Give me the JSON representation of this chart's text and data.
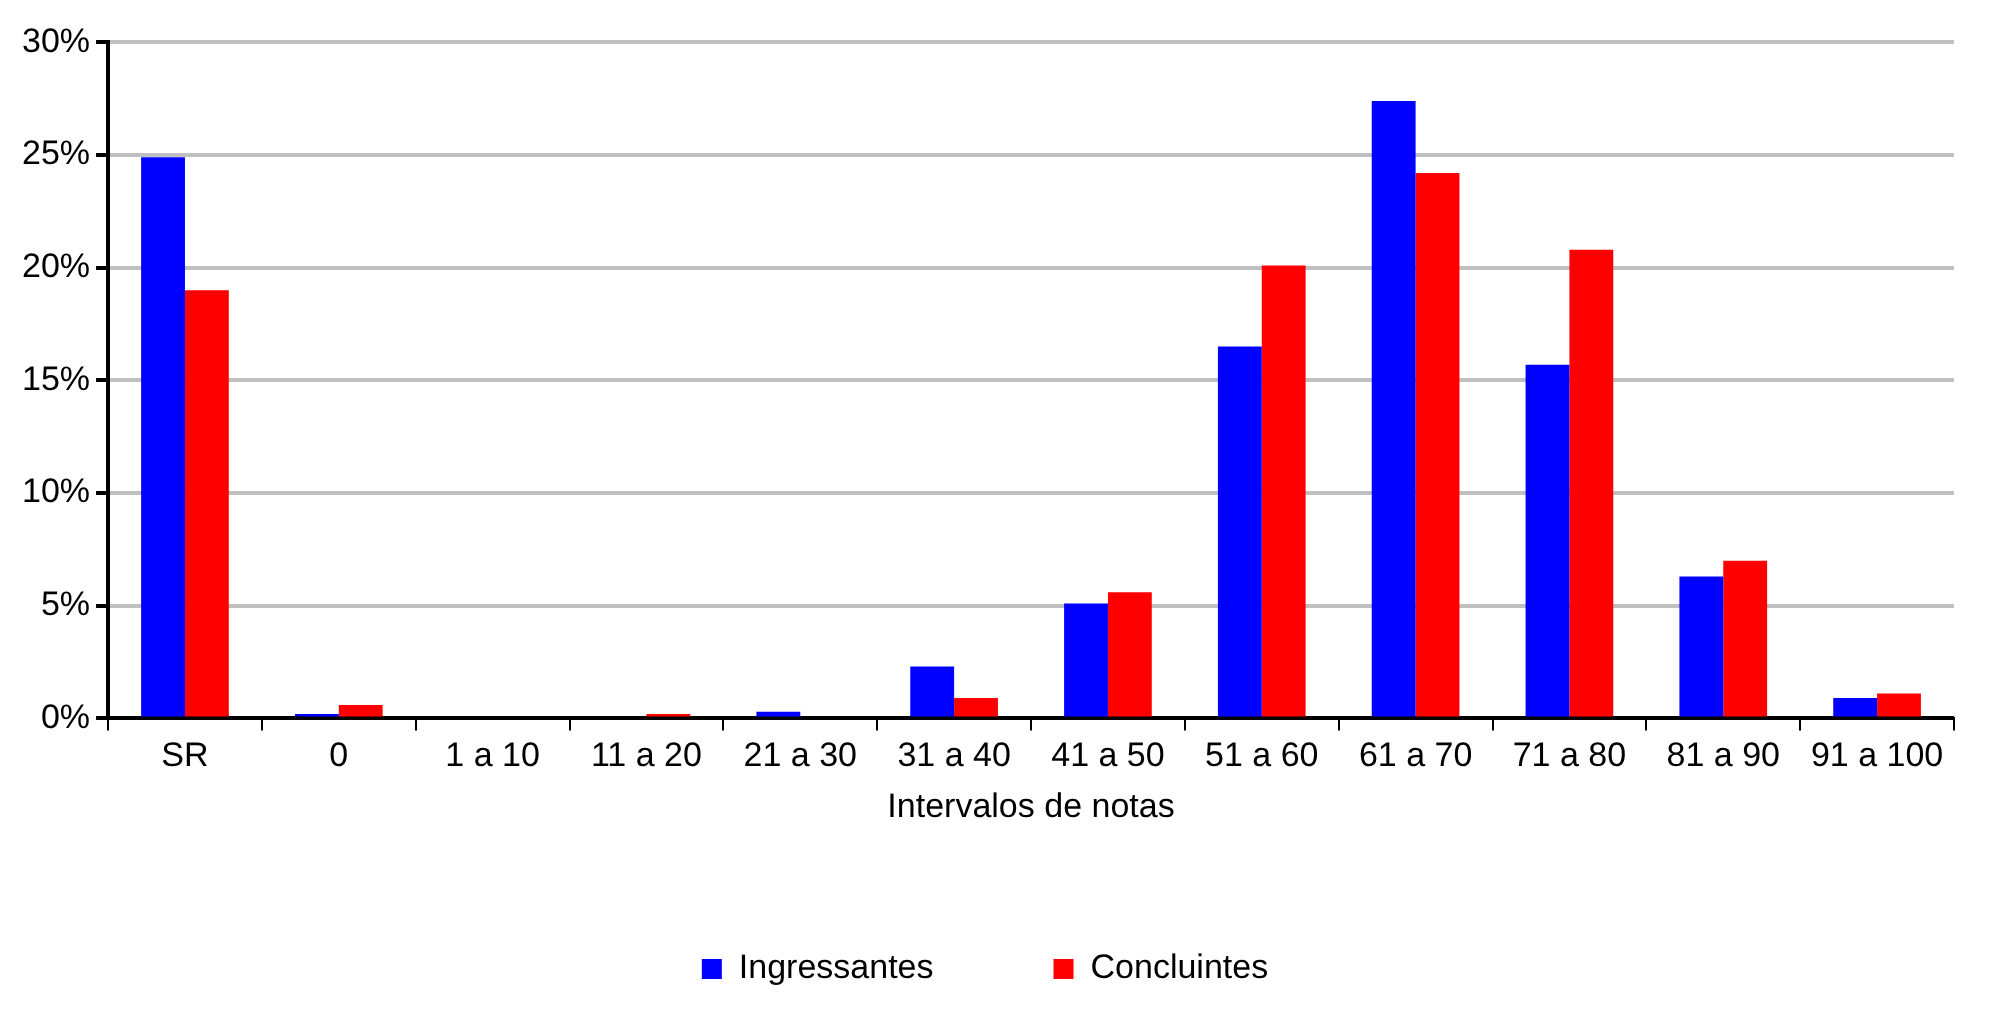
{
  "chart_data": {
    "type": "bar",
    "xlabel": "Intervalos de notas",
    "categories": [
      "SR",
      "0",
      "1 a 10",
      "11 a 20",
      "21 a 30",
      "31 a 40",
      "41 a 50",
      "51 a 60",
      "61 a 70",
      "71 a 80",
      "81 a 90",
      "91 a 100"
    ],
    "series": [
      {
        "name": "Ingressantes",
        "color": "#0000ff",
        "values": [
          24.9,
          0.2,
          0,
          0,
          0.3,
          2.3,
          5.1,
          16.5,
          27.4,
          15.7,
          6.3,
          0.9
        ]
      },
      {
        "name": "Concluintes",
        "color": "#ff0000",
        "values": [
          19.0,
          0.6,
          0,
          0.2,
          0,
          0.9,
          5.6,
          20.1,
          24.2,
          20.8,
          7.0,
          1.1
        ]
      }
    ],
    "ylim": [
      0,
      30
    ],
    "yticks": [
      {
        "value": 0,
        "label": "0%"
      },
      {
        "value": 5,
        "label": "5%"
      },
      {
        "value": 10,
        "label": "10%"
      },
      {
        "value": 15,
        "label": "15%"
      },
      {
        "value": 20,
        "label": "20%"
      },
      {
        "value": 25,
        "label": "25%"
      },
      {
        "value": 30,
        "label": "30%"
      }
    ],
    "grid": "y",
    "legend": "bottom"
  }
}
